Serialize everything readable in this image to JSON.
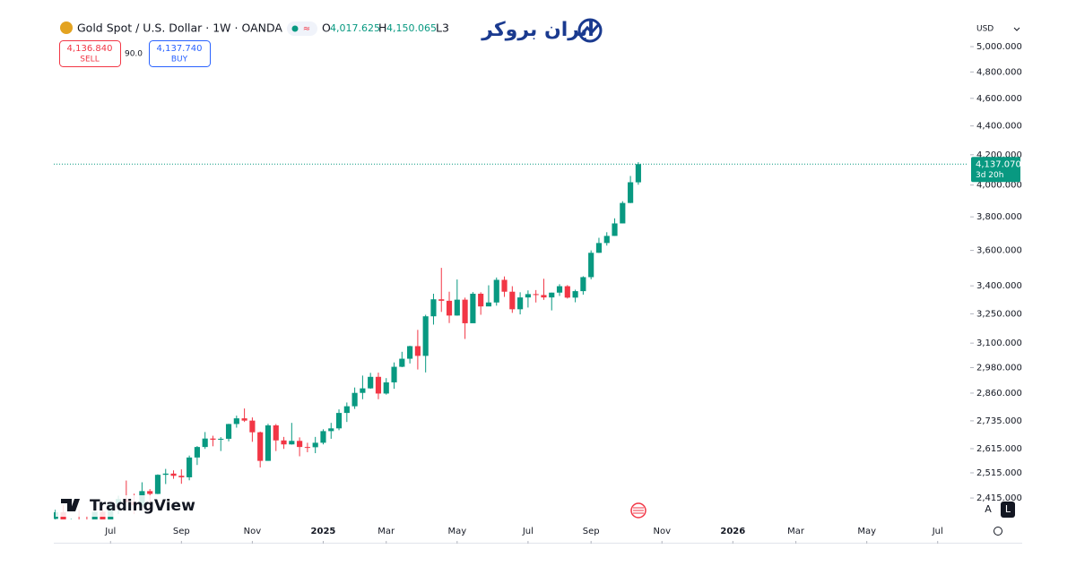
{
  "header": {
    "symbol": "Gold Spot / U.S. Dollar · 1W · OANDA",
    "badge": "≈",
    "open_label": "O",
    "open_value": "4,017.625",
    "high_label": "H",
    "high_value": "4,150.065",
    "low_label": "L3",
    "sell_price": "4,136.840",
    "sell": "SELL",
    "spread": "90.0",
    "buy_price": "4,137.740",
    "buy": "BUY",
    "currency": "USD",
    "watermark": "ایران بروکر",
    "logo": "TradingView",
    "scale_auto": "A",
    "scale_log": "L"
  },
  "chart_data": {
    "type": "candlestick",
    "log_scale": true,
    "up_color": "#089981",
    "down_color": "#f23645",
    "x": [
      -7,
      -6,
      -5,
      -4,
      -3,
      -2,
      -1,
      0,
      1,
      2,
      3,
      4,
      5,
      6,
      7,
      8,
      9,
      10,
      11,
      12,
      13,
      14,
      15,
      16,
      17,
      18,
      19,
      20,
      21,
      22,
      23,
      24,
      25,
      26,
      27,
      28,
      29,
      30,
      31,
      32,
      33,
      34,
      35,
      36,
      37,
      38,
      39,
      40,
      41,
      42,
      43,
      44,
      45,
      46,
      47,
      48,
      49,
      50,
      51,
      52,
      53,
      54,
      55,
      56,
      57,
      58,
      59,
      60,
      61,
      62,
      63,
      64,
      65,
      66,
      67
    ],
    "open": [
      2335,
      2360,
      2294,
      2333,
      2321,
      2310,
      2362,
      2327,
      2391,
      2411,
      2400,
      2387,
      2442,
      2431,
      2507,
      2512,
      2503,
      2497,
      2578,
      2622,
      2658,
      2653,
      2657,
      2721,
      2746,
      2736,
      2685,
      2564,
      2715,
      2650,
      2633,
      2648,
      2622,
      2621,
      2640,
      2690,
      2702,
      2770,
      2800,
      2861,
      2882,
      2936,
      2858,
      2910,
      2984,
      3023,
      3085,
      3037,
      3237,
      3327,
      3319,
      3241,
      3325,
      3201,
      3357,
      3289,
      3310,
      3433,
      3368,
      3274,
      3337,
      3355,
      3350,
      3337,
      3363,
      3398,
      3336,
      3371,
      3448,
      3586,
      3643,
      3685,
      3760,
      3886,
      4017.625
    ],
    "high": [
      2370,
      2387,
      2335,
      2369,
      2345,
      2368,
      2370,
      2392,
      2424,
      2484,
      2432,
      2477,
      2450,
      2509,
      2531,
      2525,
      2529,
      2586,
      2626,
      2686,
      2670,
      2664,
      2722,
      2758,
      2790,
      2750,
      2688,
      2722,
      2721,
      2665,
      2726,
      2663,
      2640,
      2665,
      2698,
      2726,
      2786,
      2817,
      2886,
      2942,
      2955,
      2956,
      2930,
      3005,
      3057,
      3087,
      3167,
      3245,
      3357,
      3500,
      3368,
      3435,
      3336,
      3366,
      3365,
      3403,
      3446,
      3452,
      3398,
      3365,
      3375,
      3377,
      3439,
      3363,
      3409,
      3404,
      3379,
      3453,
      3600,
      3674,
      3707,
      3791,
      3897,
      4059,
      4150.065
    ],
    "low": [
      2325,
      2286,
      2292,
      2316,
      2300,
      2305,
      2315,
      2318,
      2353,
      2398,
      2353,
      2380,
      2364,
      2430,
      2470,
      2491,
      2471,
      2485,
      2547,
      2614,
      2625,
      2605,
      2646,
      2705,
      2730,
      2644,
      2537,
      2564,
      2605,
      2614,
      2632,
      2583,
      2600,
      2596,
      2633,
      2657,
      2694,
      2730,
      2788,
      2832,
      2880,
      2832,
      2853,
      2880,
      2982,
      3000,
      2971,
      2957,
      3194,
      3260,
      3202,
      3240,
      3121,
      3205,
      3245,
      3290,
      3293,
      3340,
      3255,
      3247,
      3283,
      3310,
      3324,
      3268,
      3345,
      3331,
      3311,
      3352,
      3436,
      3585,
      3628,
      3685,
      3760,
      3885,
      4002
    ],
    "close": [
      2360,
      2294,
      2333,
      2321,
      2310,
      2362,
      2327,
      2391,
      2411,
      2400,
      2387,
      2442,
      2431,
      2507,
      2512,
      2503,
      2497,
      2578,
      2622,
      2658,
      2653,
      2657,
      2721,
      2746,
      2736,
      2685,
      2564,
      2715,
      2650,
      2633,
      2648,
      2622,
      2621,
      2640,
      2690,
      2702,
      2770,
      2800,
      2861,
      2882,
      2936,
      2858,
      2910,
      2984,
      3023,
      3085,
      3037,
      3237,
      3327,
      3319,
      3241,
      3325,
      3201,
      3357,
      3289,
      3310,
      3433,
      3368,
      3274,
      3337,
      3355,
      3350,
      3337,
      3363,
      3398,
      3336,
      3371,
      3448,
      3586,
      3643,
      3685,
      3760,
      3886,
      4018,
      4137.07
    ],
    "xlim": [
      -7.2,
      108.9
    ],
    "xticks": [
      {
        "value": 0,
        "label": "Jul"
      },
      {
        "value": 9,
        "label": "Sep"
      },
      {
        "value": 18,
        "label": "Nov"
      },
      {
        "value": 27,
        "label": "2025"
      },
      {
        "value": 35,
        "label": "Mar"
      },
      {
        "value": 44,
        "label": "May"
      },
      {
        "value": 53,
        "label": "Jul"
      },
      {
        "value": 61,
        "label": "Sep"
      },
      {
        "value": 70,
        "label": "Nov"
      },
      {
        "value": 79,
        "label": "2026"
      },
      {
        "value": 87,
        "label": "Mar"
      },
      {
        "value": 96,
        "label": "May"
      },
      {
        "value": 105,
        "label": "Jul"
      }
    ],
    "ylim": [
      2333,
      5237
    ],
    "yticks": [
      {
        "value": 5000,
        "label": "5,000.000"
      },
      {
        "value": 4800,
        "label": "4,800.000"
      },
      {
        "value": 4600,
        "label": "4,600.000"
      },
      {
        "value": 4400,
        "label": "4,400.000"
      },
      {
        "value": 4200,
        "label": "4,200.000"
      },
      {
        "value": 4000,
        "label": "4,000.000"
      },
      {
        "value": 3800,
        "label": "3,800.000"
      },
      {
        "value": 3600,
        "label": "3,600.000"
      },
      {
        "value": 3400,
        "label": "3,400.000"
      },
      {
        "value": 3250,
        "label": "3,250.000"
      },
      {
        "value": 3100,
        "label": "3,100.000"
      },
      {
        "value": 2980,
        "label": "2,980.000"
      },
      {
        "value": 2860,
        "label": "2,860.000"
      },
      {
        "value": 2735,
        "label": "2,735.000"
      },
      {
        "value": 2615,
        "label": "2,615.000"
      },
      {
        "value": 2515,
        "label": "2,515.000"
      },
      {
        "value": 2415,
        "label": "2,415.000"
      }
    ],
    "last_price": {
      "value": 4137.07,
      "label": "4,137.070"
    },
    "countdown": "3d 20h"
  }
}
